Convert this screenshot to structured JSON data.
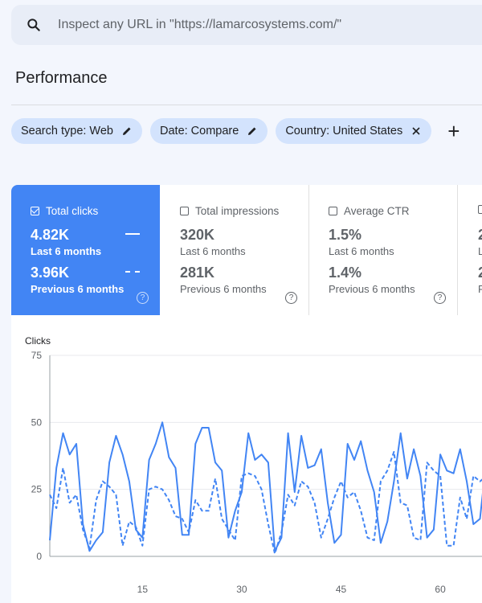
{
  "search": {
    "placeholder": "Inspect any URL in \"https://lamarcosystems.com/\""
  },
  "page": {
    "title": "Performance"
  },
  "filters": {
    "chips": [
      {
        "label": "Search type: Web",
        "icon": "edit-icon"
      },
      {
        "label": "Date: Compare",
        "icon": "edit-icon"
      },
      {
        "label": "Country: United States",
        "icon": "close-icon"
      }
    ],
    "add_icon": "add-icon"
  },
  "metrics": [
    {
      "label": "Total clicks",
      "checked": true,
      "current": "4.82K",
      "current_label": "Last 6 months",
      "previous": "3.96K",
      "previous_label": "Previous 6 months"
    },
    {
      "label": "Total impressions",
      "checked": false,
      "current": "320K",
      "current_label": "Last 6 months",
      "previous": "281K",
      "previous_label": "Previous 6 months"
    },
    {
      "label": "Average CTR",
      "checked": false,
      "current": "1.5%",
      "current_label": "Last 6 months",
      "previous": "1.4%",
      "previous_label": "Previous 6 months"
    },
    {
      "label": "",
      "checked": false,
      "current": "2",
      "current_label": "L",
      "previous": "2",
      "previous_label": "F"
    }
  ],
  "colors": {
    "accent": "#4285f4",
    "chip": "#d3e3fd"
  },
  "chart_data": {
    "type": "line",
    "ylabel": "Clicks",
    "ylim": [
      0,
      75
    ],
    "yticks": [
      0,
      25,
      50,
      75
    ],
    "xticks": [
      15,
      30,
      45,
      60
    ],
    "xlim": [
      1,
      68
    ],
    "series": [
      {
        "name": "Last 6 months",
        "style": "solid",
        "x": [
          1,
          2,
          3,
          4,
          5,
          6,
          7,
          8,
          9,
          10,
          11,
          12,
          13,
          14,
          15,
          16,
          17,
          18,
          19,
          20,
          21,
          22,
          23,
          24,
          25,
          26,
          27,
          28,
          29,
          30,
          31,
          32,
          33,
          34,
          35,
          36,
          37,
          38,
          39,
          40,
          41,
          42,
          43,
          44,
          45,
          46,
          47,
          48,
          49,
          50,
          51,
          52,
          53,
          54,
          55,
          56,
          57,
          58,
          59,
          60,
          61,
          62,
          63,
          64,
          65,
          66,
          67,
          68
        ],
        "values": [
          6,
          33,
          46,
          38,
          42,
          12,
          2,
          6,
          9,
          35,
          45,
          38,
          28,
          10,
          7,
          36,
          42,
          50,
          37,
          33,
          8,
          8,
          42,
          48,
          48,
          35,
          32,
          7,
          17,
          24,
          46,
          36,
          38,
          35,
          2,
          7,
          46,
          24,
          45,
          33,
          34,
          40,
          20,
          5,
          8,
          42,
          36,
          43,
          32,
          24,
          5,
          13,
          28,
          46,
          29,
          40,
          30,
          7,
          10,
          38,
          32,
          31,
          40,
          28,
          12,
          14,
          37,
          45
        ]
      },
      {
        "name": "Previous 6 months",
        "style": "dashed",
        "x": [
          1,
          2,
          3,
          4,
          5,
          6,
          7,
          8,
          9,
          10,
          11,
          12,
          13,
          14,
          15,
          16,
          17,
          18,
          19,
          20,
          21,
          22,
          23,
          24,
          25,
          26,
          27,
          28,
          29,
          30,
          31,
          32,
          33,
          34,
          35,
          36,
          37,
          38,
          39,
          40,
          41,
          42,
          43,
          44,
          45,
          46,
          47,
          48,
          49,
          50,
          51,
          52,
          53,
          54,
          55,
          56,
          57,
          58,
          59,
          60,
          61,
          62,
          63,
          64,
          65,
          66,
          67,
          68
        ],
        "values": [
          23,
          18,
          33,
          20,
          23,
          10,
          3,
          21,
          28,
          26,
          23,
          4,
          13,
          11,
          4,
          25,
          26,
          25,
          21,
          15,
          14,
          9,
          21,
          17,
          17,
          29,
          14,
          10,
          6,
          30,
          31,
          30,
          25,
          12,
          1,
          9,
          23,
          19,
          28,
          26,
          20,
          7,
          14,
          22,
          28,
          22,
          24,
          17,
          7,
          6,
          28,
          32,
          39,
          20,
          19,
          7,
          6,
          35,
          32,
          30,
          4,
          4,
          22,
          14,
          30,
          28,
          30,
          29
        ]
      }
    ]
  }
}
